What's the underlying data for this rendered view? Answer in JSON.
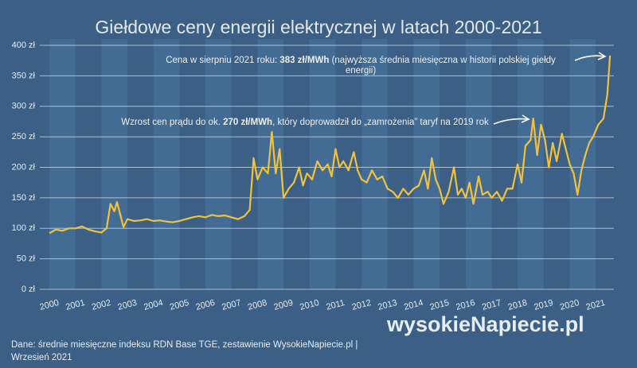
{
  "chart_data": {
    "type": "line",
    "title": "Giełdowe ceny energii elektrycznej w latach 2000-2021",
    "color": "#f2c23a",
    "x": [
      2000.0,
      2000.25,
      2000.5,
      2000.75,
      2001.0,
      2001.25,
      2001.5,
      2001.75,
      2002.0,
      2002.2,
      2002.35,
      2002.5,
      2002.6,
      2002.75,
      2002.85,
      2003.0,
      2003.25,
      2003.5,
      2003.75,
      2004.0,
      2004.25,
      2004.5,
      2004.75,
      2005.0,
      2005.25,
      2005.5,
      2005.75,
      2006.0,
      2006.25,
      2006.5,
      2006.75,
      2007.0,
      2007.25,
      2007.5,
      2007.7,
      2007.85,
      2008.0,
      2008.2,
      2008.4,
      2008.55,
      2008.7,
      2008.85,
      2009.0,
      2009.2,
      2009.4,
      2009.6,
      2009.75,
      2009.9,
      2010.1,
      2010.3,
      2010.5,
      2010.7,
      2010.85,
      2011.0,
      2011.15,
      2011.3,
      2011.5,
      2011.7,
      2011.85,
      2012.0,
      2012.2,
      2012.4,
      2012.6,
      2012.8,
      2013.0,
      2013.2,
      2013.4,
      2013.6,
      2013.8,
      2014.0,
      2014.2,
      2014.4,
      2014.55,
      2014.7,
      2014.85,
      2015.0,
      2015.15,
      2015.35,
      2015.55,
      2015.7,
      2015.85,
      2016.0,
      2016.15,
      2016.3,
      2016.5,
      2016.65,
      2016.85,
      2017.0,
      2017.2,
      2017.4,
      2017.6,
      2017.8,
      2018.0,
      2018.15,
      2018.3,
      2018.5,
      2018.6,
      2018.75,
      2018.9,
      2019.05,
      2019.2,
      2019.35,
      2019.5,
      2019.7,
      2019.85,
      2020.0,
      2020.15,
      2020.3,
      2020.45,
      2020.6,
      2020.75,
      2020.9,
      2021.1,
      2021.3,
      2021.45,
      2021.55
    ],
    "values": [
      92,
      98,
      96,
      100,
      100,
      103,
      98,
      95,
      93,
      100,
      140,
      128,
      143,
      118,
      102,
      115,
      112,
      113,
      115,
      112,
      113,
      111,
      110,
      112,
      115,
      118,
      120,
      118,
      122,
      120,
      121,
      118,
      115,
      120,
      130,
      215,
      180,
      200,
      190,
      258,
      190,
      230,
      150,
      165,
      175,
      200,
      170,
      190,
      180,
      210,
      195,
      205,
      185,
      230,
      200,
      210,
      195,
      225,
      195,
      180,
      175,
      195,
      180,
      185,
      165,
      160,
      150,
      165,
      155,
      165,
      170,
      195,
      165,
      215,
      180,
      165,
      140,
      160,
      200,
      155,
      165,
      150,
      175,
      140,
      185,
      155,
      160,
      150,
      160,
      145,
      165,
      165,
      205,
      175,
      235,
      245,
      280,
      220,
      270,
      245,
      200,
      240,
      210,
      255,
      230,
      205,
      190,
      155,
      195,
      220,
      240,
      250,
      270,
      280,
      320,
      383
    ],
    "xlim": [
      2000,
      2021.7
    ],
    "xticks": [
      2000,
      2001,
      2002,
      2003,
      2004,
      2005,
      2006,
      2007,
      2008,
      2009,
      2010,
      2011,
      2012,
      2013,
      2014,
      2015,
      2016,
      2017,
      2018,
      2019,
      2020,
      2021
    ],
    "ylim": [
      0,
      400
    ],
    "yticks": [
      {
        "value": 0,
        "label": "0 zł"
      },
      {
        "value": 50,
        "label": "50 zł"
      },
      {
        "value": 100,
        "label": "100 zł"
      },
      {
        "value": 150,
        "label": "150 zł"
      },
      {
        "value": 200,
        "label": "200 zł"
      },
      {
        "value": 250,
        "label": "250 zł"
      },
      {
        "value": 300,
        "label": "300 zł"
      },
      {
        "value": 350,
        "label": "350 zł"
      },
      {
        "value": 400,
        "label": "400 zł"
      }
    ],
    "grid": true,
    "annotations": [
      {
        "text": "Cena w sierpniu 2021 roku: ",
        "bold": "383 zł/MWh",
        "rest": " (najwyższa średnia miesięczna w historii polskiej giełdy energii)"
      },
      {
        "text": "Wzrost cen prądu do ok. ",
        "bold": "270 zł/MWh",
        "rest": ", który doprowadził do „zamrożenia” taryf na 2019 rok"
      }
    ],
    "source": [
      "Dane: średnie miesięczne indeksu RDN Base TGE, zestawienie WysokieNapiecie.pl   |",
      "Wrzesień 2021"
    ],
    "logo": "wysokieNapiecie.pl"
  }
}
